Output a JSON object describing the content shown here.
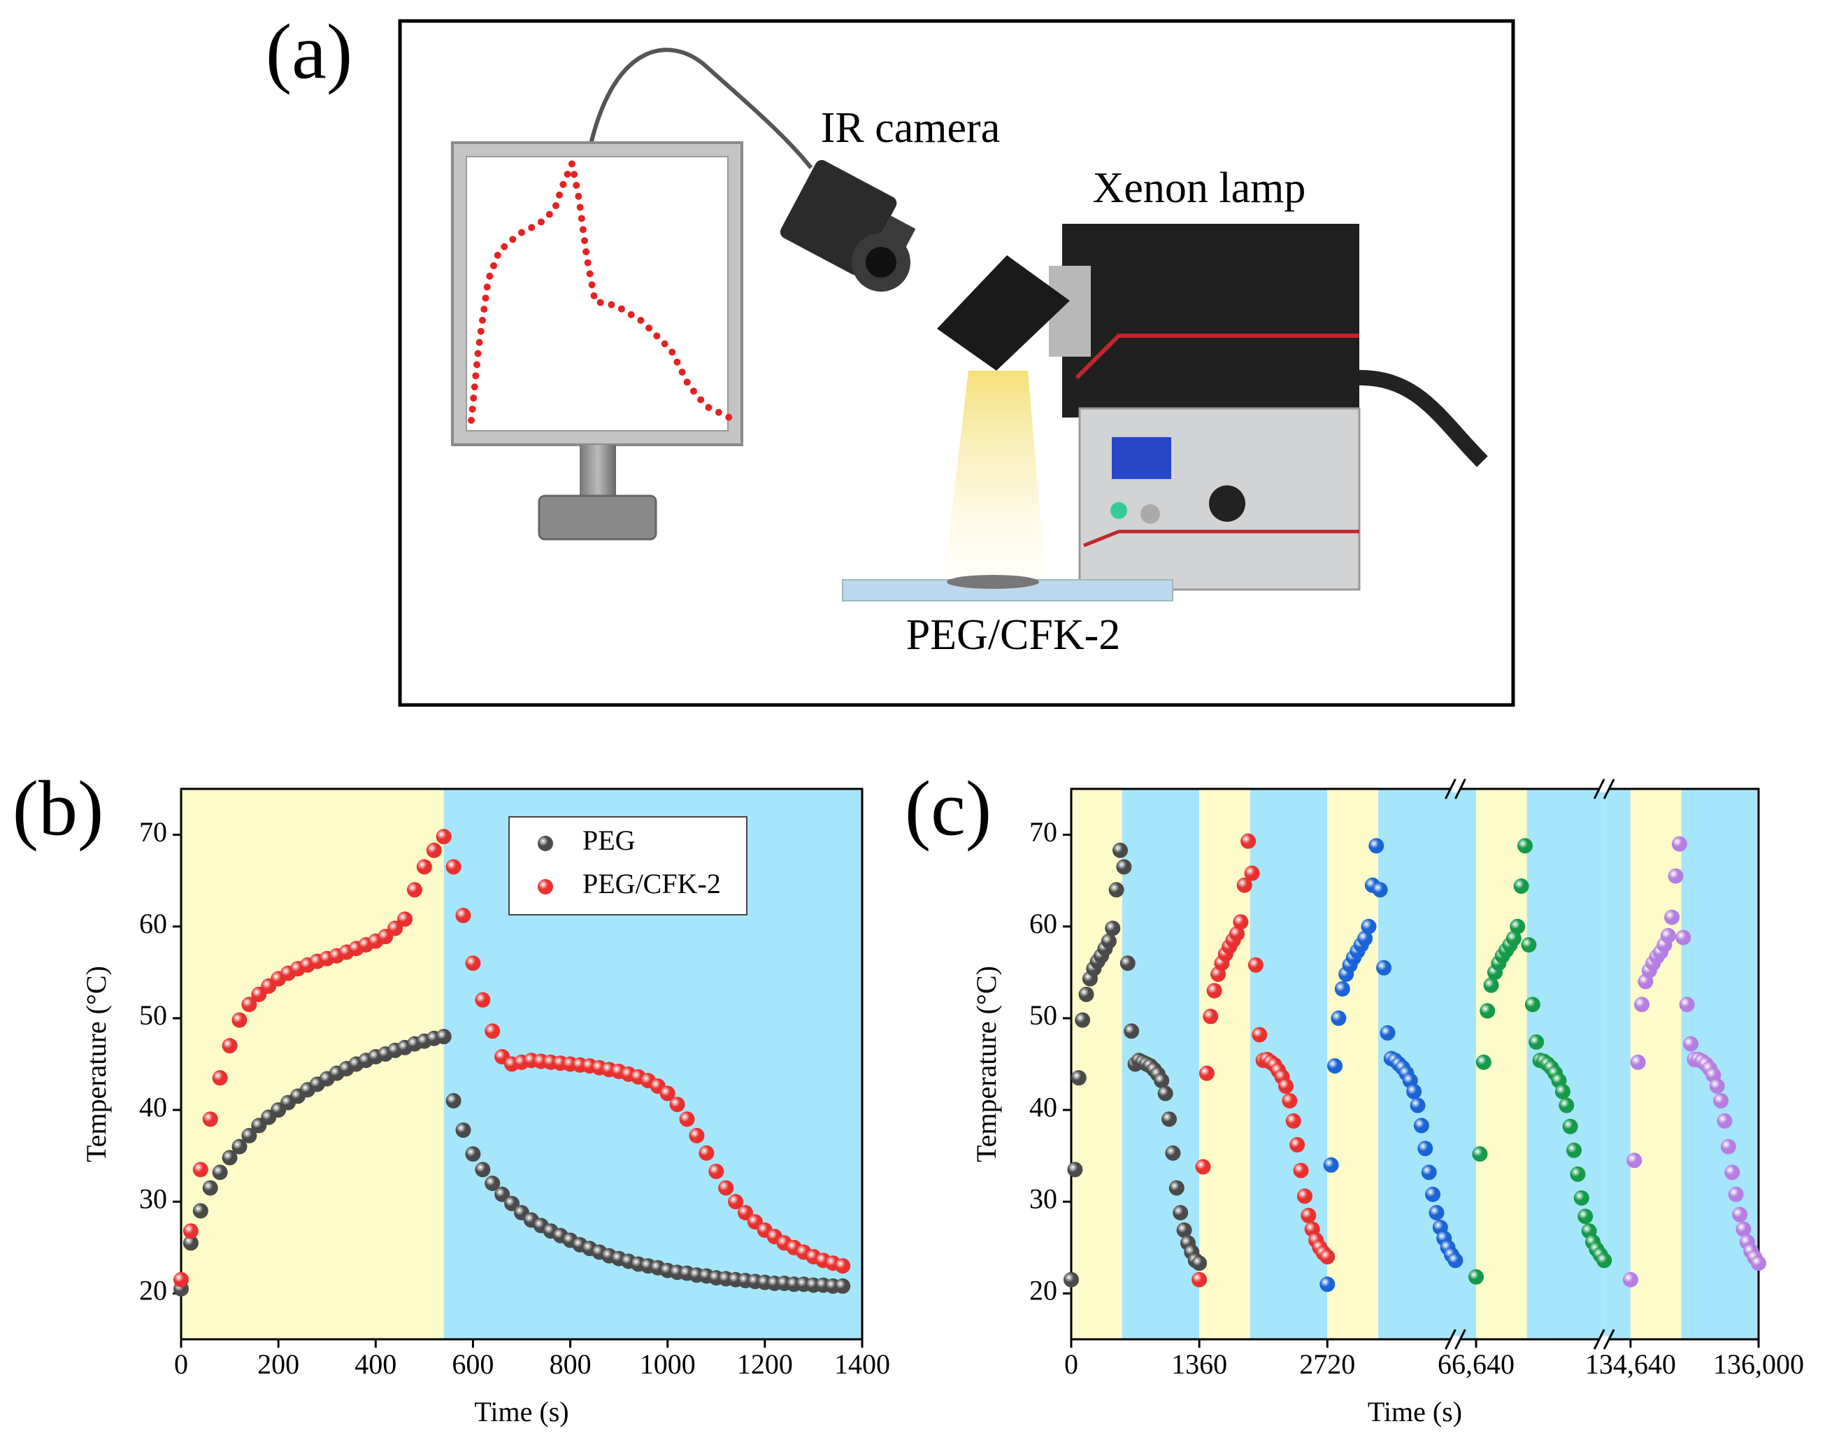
{
  "diagram": {
    "label": "(a)",
    "camera_label": "IR camera",
    "lamp_label": "Xenon lamp",
    "sample_label": "PEG/CFK-2"
  },
  "chart_data": [
    {
      "type": "scatter",
      "panel_label": "(b)",
      "xlabel": "Time (s)",
      "ylabel": "Temperature (°C)",
      "xlim": [
        0,
        1400
      ],
      "xticks": [
        0,
        200,
        400,
        600,
        800,
        1000,
        1200,
        1400
      ],
      "ylim": [
        15,
        75
      ],
      "yticks": [
        20,
        30,
        40,
        50,
        60,
        70
      ],
      "legend": "upper right",
      "regions": [
        {
          "xlim": [
            0,
            540
          ],
          "color": "#fcfbc9"
        },
        {
          "xlim": [
            540,
            1400
          ],
          "color": "#a6e6fb"
        }
      ],
      "x": [
        0,
        20,
        40,
        60,
        80,
        100,
        120,
        140,
        160,
        180,
        200,
        220,
        240,
        260,
        280,
        300,
        320,
        340,
        360,
        380,
        400,
        420,
        440,
        460,
        480,
        500,
        520,
        540,
        560,
        580,
        600,
        620,
        640,
        660,
        680,
        700,
        720,
        740,
        760,
        780,
        800,
        820,
        840,
        860,
        880,
        900,
        920,
        940,
        960,
        980,
        1000,
        1020,
        1040,
        1060,
        1080,
        1100,
        1120,
        1140,
        1160,
        1180,
        1200,
        1220,
        1240,
        1260,
        1280,
        1300,
        1320,
        1340,
        1360
      ],
      "series": [
        {
          "name": "PEG",
          "color": "#4a4a4a",
          "values": [
            20.5,
            25.5,
            29,
            31.5,
            33.2,
            34.8,
            36,
            37.2,
            38.3,
            39.2,
            40,
            40.8,
            41.5,
            42.2,
            42.8,
            43.4,
            44,
            44.5,
            45,
            45.4,
            45.8,
            46.1,
            46.5,
            46.8,
            47.2,
            47.5,
            47.8,
            48,
            41,
            37.8,
            35.2,
            33.5,
            32,
            30.8,
            29.8,
            28.8,
            28,
            27.4,
            26.8,
            26.3,
            25.8,
            25.3,
            24.9,
            24.5,
            24.1,
            23.8,
            23.5,
            23.2,
            23,
            22.8,
            22.5,
            22.3,
            22.2,
            22,
            21.9,
            21.7,
            21.6,
            21.5,
            21.4,
            21.3,
            21.2,
            21.1,
            21.1,
            21,
            21,
            20.9,
            20.9,
            20.8,
            20.8
          ]
        },
        {
          "name": "PEG/CFK-2",
          "color": "#e8312f",
          "values": [
            21.5,
            26.8,
            33.5,
            39,
            43.5,
            47,
            49.8,
            51.5,
            52.6,
            53.5,
            54.3,
            54.9,
            55.4,
            55.8,
            56.2,
            56.5,
            56.8,
            57.2,
            57.6,
            58,
            58.4,
            58.9,
            59.8,
            60.8,
            64,
            66.5,
            68.3,
            69.8,
            66.5,
            61.2,
            56,
            52,
            48.6,
            45.8,
            45,
            45.2,
            45.4,
            45.3,
            45.2,
            45.1,
            45,
            44.9,
            44.8,
            44.6,
            44.4,
            44.2,
            43.9,
            43.6,
            43.2,
            42.6,
            41.8,
            40.6,
            39,
            37.2,
            35.3,
            33.3,
            31.5,
            30,
            28.8,
            27.8,
            26.9,
            26.2,
            25.5,
            25,
            24.5,
            24,
            23.6,
            23.3,
            23
          ]
        }
      ]
    },
    {
      "type": "scatter",
      "panel_label": "(c)",
      "xlabel": "Time (s)",
      "ylabel": "Temperature (°C)",
      "xlim_segments": [
        [
          0,
          4080
        ],
        [
          66420,
          68000
        ],
        [
          134360,
          136000
        ]
      ],
      "xticks": [
        0,
        1360,
        2720,
        {
          "value": 66640,
          "label": "66,640"
        },
        {
          "value": 134640,
          "label": "134,640"
        },
        {
          "value": 136000,
          "label": "136,000"
        }
      ],
      "ylim": [
        15,
        75
      ],
      "yticks": [
        20,
        30,
        40,
        50,
        60,
        70
      ],
      "regions": [
        {
          "xlim": [
            0,
            540
          ],
          "color": "#fcfbc9"
        },
        {
          "xlim": [
            540,
            1360
          ],
          "color": "#a6e6fb"
        },
        {
          "xlim": [
            1360,
            1900
          ],
          "color": "#fcfbc9"
        },
        {
          "xlim": [
            1900,
            2720
          ],
          "color": "#a6e6fb"
        },
        {
          "xlim": [
            2720,
            3260
          ],
          "color": "#fcfbc9"
        },
        {
          "xlim": [
            3260,
            4080
          ],
          "color": "#a6e6fb"
        },
        {
          "xlim": [
            66420,
            66640
          ],
          "color": "#a6e6fb"
        },
        {
          "xlim": [
            66640,
            67180
          ],
          "color": "#fcfbc9"
        },
        {
          "xlim": [
            67180,
            68000
          ],
          "color": "#a6e6fb"
        },
        {
          "xlim": [
            134360,
            134640
          ],
          "color": "#a6e6fb"
        },
        {
          "xlim": [
            134640,
            135180
          ],
          "color": "#fcfbc9"
        },
        {
          "xlim": [
            135180,
            136000
          ],
          "color": "#a6e6fb"
        }
      ],
      "series": [
        {
          "color": "#4a4a4a",
          "x": [
            0,
            40,
            80,
            120,
            160,
            200,
            240,
            280,
            320,
            360,
            400,
            440,
            480,
            520,
            560,
            600,
            640,
            680,
            720,
            760,
            800,
            840,
            880,
            920,
            960,
            1000,
            1040,
            1080,
            1120,
            1160,
            1200,
            1240,
            1280,
            1320,
            1360
          ],
          "values": [
            21.5,
            33.5,
            43.5,
            49.8,
            52.6,
            54.3,
            55.4,
            56.2,
            56.8,
            57.6,
            58.4,
            59.8,
            64,
            68.3,
            66.5,
            56,
            48.6,
            45,
            45.4,
            45.2,
            45,
            44.8,
            44.4,
            43.9,
            43.2,
            41.8,
            39,
            35.3,
            31.5,
            28.8,
            26.9,
            25.5,
            24.5,
            23.6,
            23.3
          ]
        },
        {
          "color": "#e8312f",
          "x": [
            1360,
            1400,
            1440,
            1480,
            1520,
            1560,
            1600,
            1640,
            1680,
            1720,
            1760,
            1800,
            1840,
            1880,
            1920,
            1960,
            2000,
            2040,
            2080,
            2120,
            2160,
            2200,
            2240,
            2280,
            2320,
            2360,
            2400,
            2440,
            2480,
            2520,
            2560,
            2600,
            2640,
            2680,
            2720
          ],
          "values": [
            21.5,
            33.8,
            44,
            50.2,
            53,
            54.8,
            56,
            57,
            57.8,
            58.5,
            59.2,
            60.5,
            64.5,
            69.3,
            65.8,
            55.8,
            48.2,
            45.4,
            45.5,
            45.2,
            44.9,
            44.3,
            43.6,
            42.6,
            41,
            38.8,
            36.2,
            33.4,
            30.6,
            28.5,
            27,
            25.8,
            25,
            24.4,
            24
          ]
        },
        {
          "color": "#1a64d6",
          "x": [
            2720,
            2760,
            2800,
            2840,
            2880,
            2920,
            2960,
            3000,
            3040,
            3080,
            3120,
            3160,
            3200,
            3240,
            3280,
            3320,
            3360,
            3400,
            3440,
            3480,
            3520,
            3560,
            3600,
            3640,
            3680,
            3720,
            3760,
            3800,
            3840,
            3880,
            3920,
            3960,
            4000,
            4040,
            4080
          ],
          "values": [
            21,
            34,
            44.8,
            50,
            53.2,
            54.8,
            55.8,
            56.6,
            57.3,
            58,
            58.7,
            60,
            64.5,
            68.8,
            64,
            55.5,
            48.4,
            45.6,
            45.4,
            45,
            44.6,
            44,
            43.2,
            42,
            40.5,
            38.3,
            35.8,
            33.2,
            30.8,
            28.8,
            27.2,
            26,
            25,
            24.2,
            23.6
          ]
        },
        {
          "color": "#149a4a",
          "x": [
            66640,
            66680,
            66720,
            66760,
            66800,
            66840,
            66880,
            66920,
            66960,
            67000,
            67040,
            67080,
            67120,
            67160,
            67200,
            67240,
            67280,
            67320,
            67360,
            67400,
            67440,
            67480,
            67520,
            67560,
            67600,
            67640,
            67680,
            67720,
            67760,
            67800,
            67840,
            67880,
            67920,
            67960,
            68000
          ],
          "values": [
            21.8,
            35.2,
            45.2,
            50.8,
            53.6,
            55,
            56,
            56.8,
            57.4,
            58,
            58.7,
            60,
            64.4,
            68.8,
            58,
            51.5,
            47.4,
            45.4,
            45.3,
            45,
            44.6,
            44,
            43.2,
            42,
            40.5,
            38.2,
            35.6,
            33,
            30.4,
            28.4,
            26.8,
            25.6,
            24.8,
            24.2,
            23.6
          ]
        },
        {
          "color": "#b57ee0",
          "x": [
            134640,
            134680,
            134720,
            134760,
            134800,
            134840,
            134880,
            134920,
            134960,
            135000,
            135040,
            135080,
            135120,
            135160,
            135200,
            135240,
            135280,
            135320,
            135360,
            135400,
            135440,
            135480,
            135520,
            135560,
            135600,
            135640,
            135680,
            135720,
            135760,
            135800,
            135840,
            135880,
            135920,
            135960,
            136000
          ],
          "values": [
            21.5,
            34.5,
            45.2,
            51.5,
            54,
            55.2,
            56,
            56.7,
            57.2,
            58,
            59,
            61,
            65.5,
            69,
            58.8,
            51.5,
            47.2,
            45.5,
            45.5,
            45.3,
            45,
            44.5,
            43.8,
            42.6,
            41,
            38.8,
            36,
            33.2,
            30.8,
            28.6,
            27,
            25.6,
            24.6,
            23.9,
            23.3
          ]
        }
      ]
    }
  ]
}
